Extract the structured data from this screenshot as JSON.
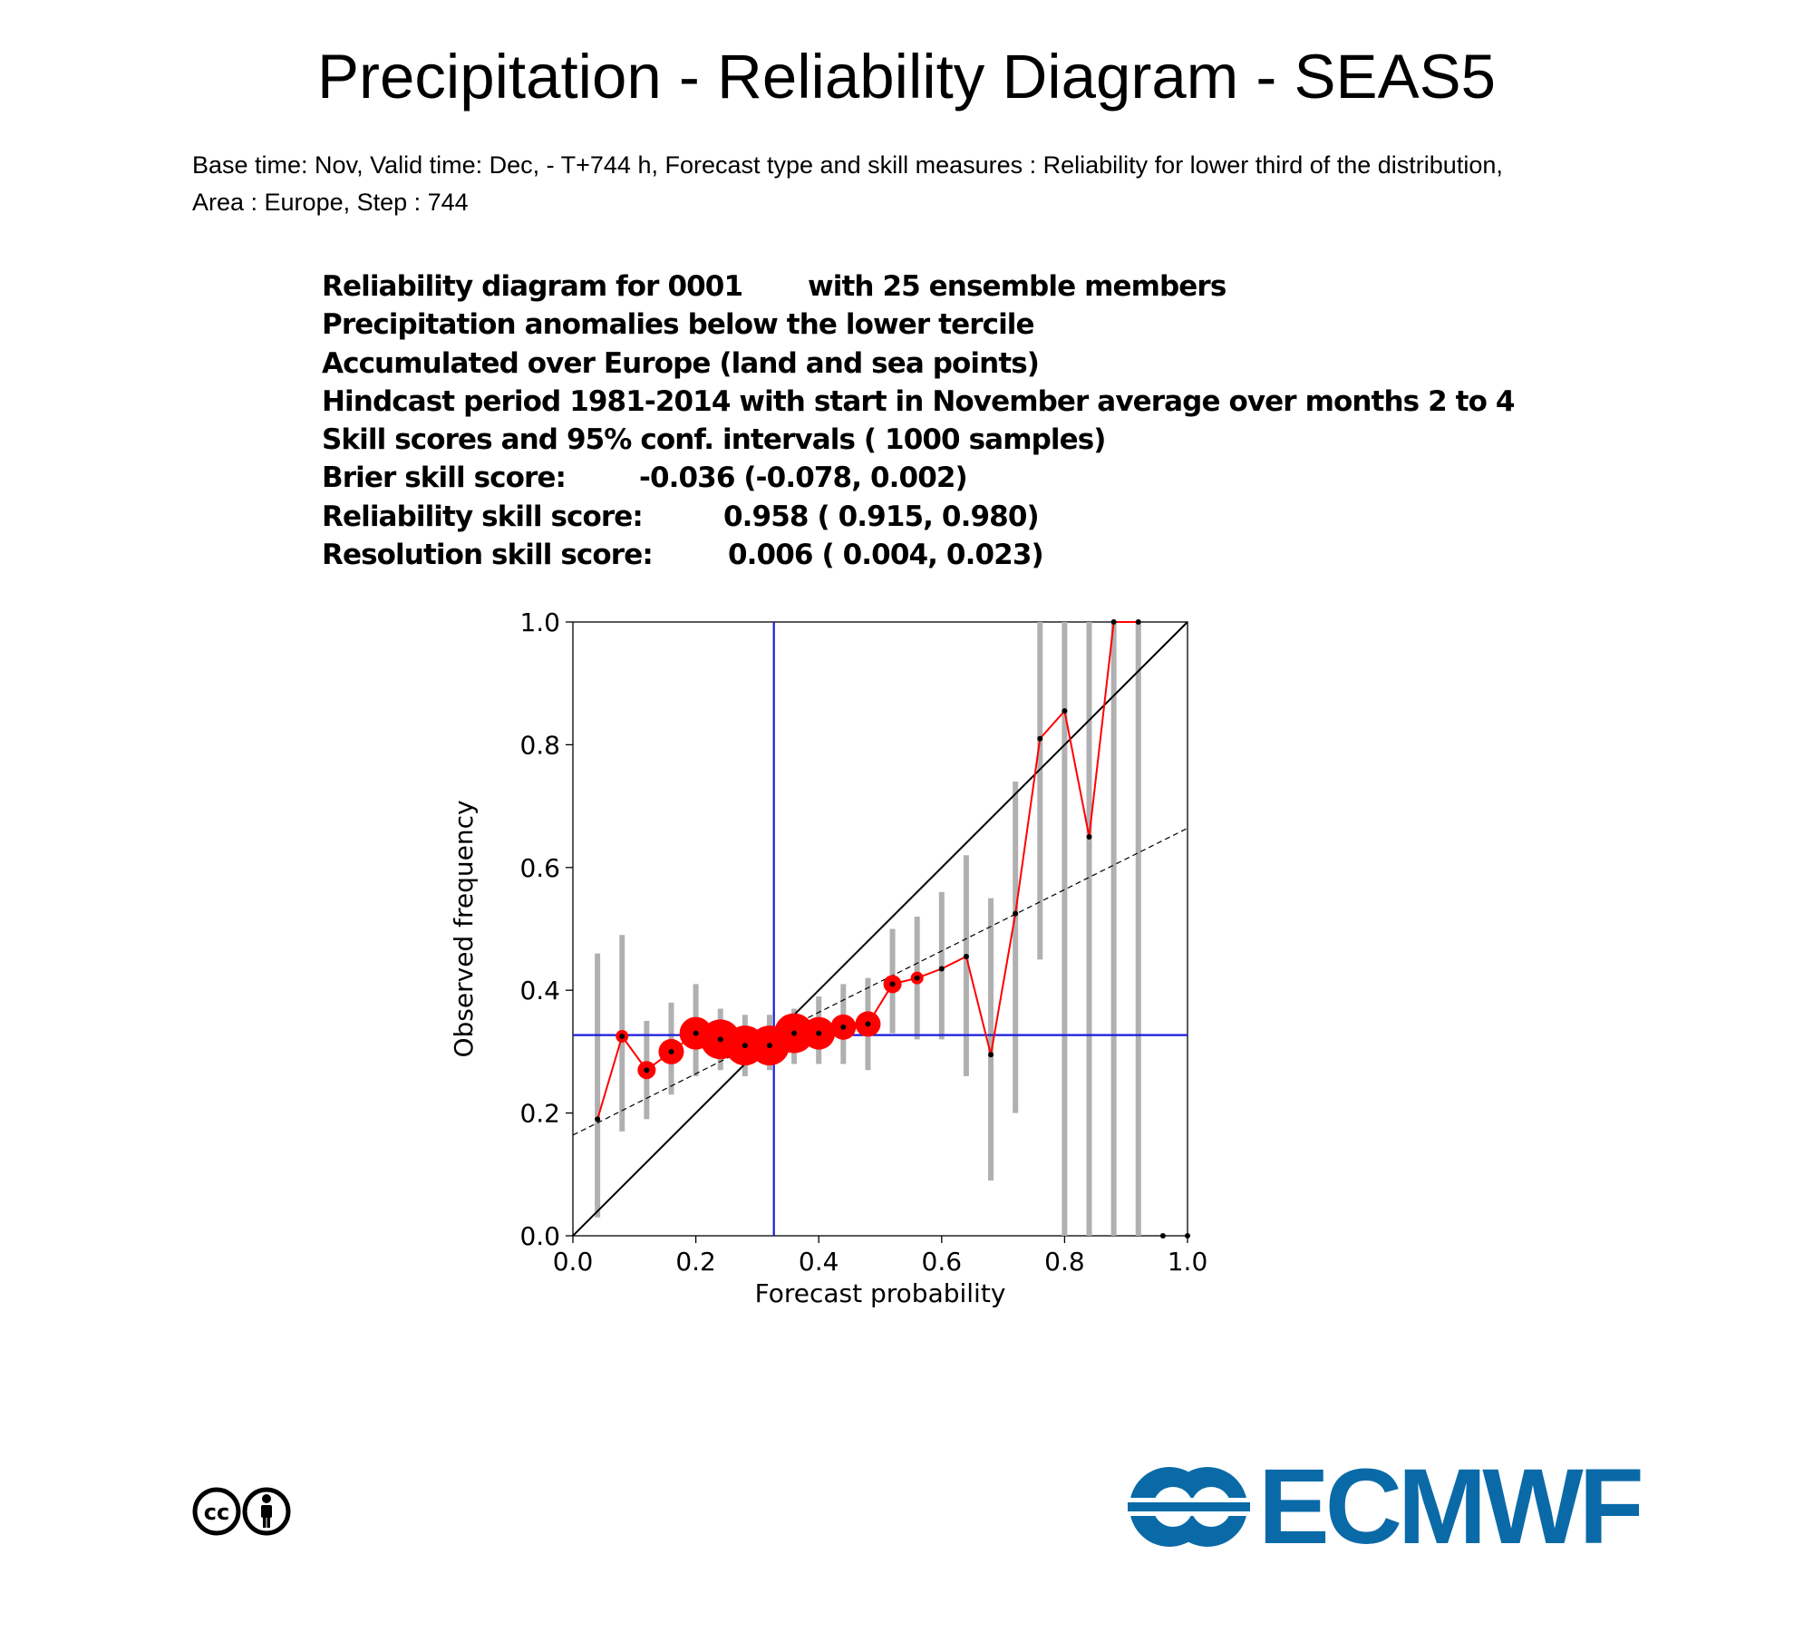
{
  "title": "Precipitation - Reliability Diagram - SEAS5",
  "subtitle": {
    "line1": "Base time: Nov, Valid time: Dec, - T+744 h, Forecast type and skill measures : Reliability for lower third of the distribution,",
    "line2": "Area : Europe, Step : 744"
  },
  "info": {
    "line1_a": "Reliability diagram for 0001",
    "line1_b": "with 25 ensemble members",
    "line2": "Precipitation anomalies below the lower tercile",
    "line3": "Accumulated over Europe (land and sea points)",
    "line4": "Hindcast period 1981-2014 with start in November average over months  2 to  4",
    "line5": "Skill scores and 95% conf. intervals ( 1000 samples)",
    "bss_label": "Brier skill score:",
    "bss_value": "-0.036 (-0.078, 0.002)",
    "rel_label": "Reliability skill score:",
    "rel_value": "0.958 ( 0.915, 0.980)",
    "res_label": "Resolution skill score:",
    "res_value": "0.006 ( 0.004, 0.023)"
  },
  "chart_data": {
    "type": "scatter",
    "xlabel": "Forecast probability",
    "ylabel": "Observed frequency",
    "xlim": [
      0,
      1
    ],
    "ylim": [
      0,
      1
    ],
    "xticks": [
      "0.0",
      "0.2",
      "0.4",
      "0.6",
      "0.8",
      "1.0"
    ],
    "yticks": [
      "0.0",
      "0.2",
      "0.4",
      "0.6",
      "0.8",
      "1.0"
    ],
    "climatology": 0.327,
    "no_skill_line": {
      "intercept": 0.164,
      "slope": 0.5
    },
    "points": [
      {
        "x": 0.04,
        "y": 0.19,
        "lo": 0.03,
        "hi": 0.46,
        "size": 0
      },
      {
        "x": 0.08,
        "y": 0.325,
        "lo": 0.17,
        "hi": 0.49,
        "size": 1
      },
      {
        "x": 0.12,
        "y": 0.27,
        "lo": 0.19,
        "hi": 0.35,
        "size": 2
      },
      {
        "x": 0.16,
        "y": 0.3,
        "lo": 0.23,
        "hi": 0.38,
        "size": 3
      },
      {
        "x": 0.2,
        "y": 0.33,
        "lo": 0.26,
        "hi": 0.41,
        "size": 4
      },
      {
        "x": 0.24,
        "y": 0.32,
        "lo": 0.27,
        "hi": 0.37,
        "size": 5
      },
      {
        "x": 0.28,
        "y": 0.31,
        "lo": 0.26,
        "hi": 0.36,
        "size": 5
      },
      {
        "x": 0.32,
        "y": 0.31,
        "lo": 0.27,
        "hi": 0.36,
        "size": 5
      },
      {
        "x": 0.36,
        "y": 0.33,
        "lo": 0.28,
        "hi": 0.37,
        "size": 5
      },
      {
        "x": 0.4,
        "y": 0.33,
        "lo": 0.28,
        "hi": 0.39,
        "size": 4
      },
      {
        "x": 0.44,
        "y": 0.34,
        "lo": 0.28,
        "hi": 0.41,
        "size": 3
      },
      {
        "x": 0.48,
        "y": 0.345,
        "lo": 0.27,
        "hi": 0.42,
        "size": 3
      },
      {
        "x": 0.52,
        "y": 0.41,
        "lo": 0.33,
        "hi": 0.5,
        "size": 2
      },
      {
        "x": 0.56,
        "y": 0.42,
        "lo": 0.32,
        "hi": 0.52,
        "size": 1
      },
      {
        "x": 0.6,
        "y": 0.435,
        "lo": 0.32,
        "hi": 0.56,
        "size": 0
      },
      {
        "x": 0.64,
        "y": 0.455,
        "lo": 0.26,
        "hi": 0.62,
        "size": 0
      },
      {
        "x": 0.68,
        "y": 0.295,
        "lo": 0.09,
        "hi": 0.55,
        "size": 0
      },
      {
        "x": 0.72,
        "y": 0.525,
        "lo": 0.2,
        "hi": 0.74,
        "size": 0
      },
      {
        "x": 0.76,
        "y": 0.81,
        "lo": 0.45,
        "hi": 1.0,
        "size": 0
      },
      {
        "x": 0.8,
        "y": 0.855,
        "lo": 0.0,
        "hi": 1.0,
        "size": 0
      },
      {
        "x": 0.84,
        "y": 0.65,
        "lo": 0.0,
        "hi": 1.0,
        "size": 0
      },
      {
        "x": 0.88,
        "y": 1.0,
        "lo": 0.0,
        "hi": 1.0,
        "size": 0
      },
      {
        "x": 0.92,
        "y": 1.0,
        "lo": 0.0,
        "hi": 1.0,
        "size": 0
      },
      {
        "x": 0.96,
        "y": 0.0,
        "lo": null,
        "hi": null,
        "size": 0
      },
      {
        "x": 1.0,
        "y": 0.0,
        "lo": null,
        "hi": null,
        "size": 0
      }
    ],
    "colors": {
      "reliability": "#ff0000",
      "climatology": "#1a1adc",
      "error_bar": "#b0b0b0",
      "diagonal": "#000000"
    }
  },
  "logos": {
    "ecmwf_text": "ECMWF",
    "ecmwf_color": "#0a6aa8",
    "cc_text": "cc",
    "cc_icon": "creative-commons-by-icon"
  }
}
